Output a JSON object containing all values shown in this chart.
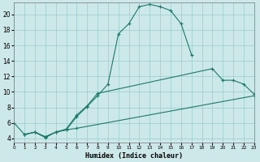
{
  "bg_color": "#cce8e8",
  "grid_color": "#99cccc",
  "line_color": "#1a7a6a",
  "xlabel": "Humidex (Indice chaleur)",
  "xlim": [
    0,
    23
  ],
  "ylim": [
    3.5,
    21.5
  ],
  "xticks": [
    0,
    1,
    2,
    3,
    4,
    5,
    6,
    7,
    8,
    9,
    10,
    11,
    12,
    13,
    14,
    15,
    16,
    17,
    18,
    19,
    20,
    21,
    22,
    23
  ],
  "yticks": [
    4,
    6,
    8,
    10,
    12,
    14,
    16,
    18,
    20
  ],
  "curve1_x": [
    0,
    1,
    2,
    3,
    4,
    5,
    6,
    7,
    8,
    9,
    10,
    11,
    12,
    13,
    14,
    15,
    16,
    17
  ],
  "curve1_y": [
    6.0,
    4.5,
    4.8,
    4.1,
    4.8,
    5.1,
    6.8,
    8.1,
    9.5,
    11.0,
    17.5,
    18.8,
    21.0,
    21.3,
    21.0,
    20.5,
    18.8,
    14.8
  ],
  "curve2_x": [
    1,
    2,
    3,
    4,
    5,
    6,
    7,
    8,
    19,
    20,
    21,
    22,
    23
  ],
  "curve2_y": [
    4.5,
    4.8,
    4.2,
    4.8,
    5.2,
    7.0,
    8.2,
    9.8,
    13.0,
    11.5,
    11.5,
    11.0,
    9.7
  ],
  "curve3_x": [
    1,
    2,
    3,
    4,
    5,
    6,
    23
  ],
  "curve3_y": [
    4.5,
    4.8,
    4.2,
    4.8,
    5.1,
    5.3,
    9.5
  ]
}
